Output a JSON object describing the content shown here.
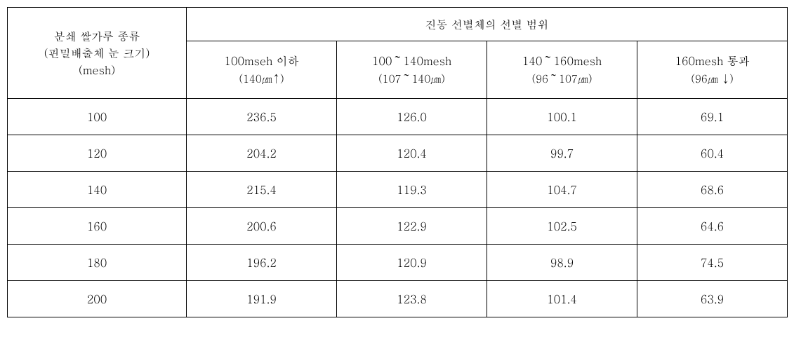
{
  "table": {
    "rowHeader": {
      "line1": "분쇄 쌀가루 종류",
      "line2": "(핀밀배출체 눈 크기)",
      "line3": "(mesh)"
    },
    "colGroupHeader": "진동 선별체의 선별 범위",
    "columnHeaders": [
      {
        "main": "100mseh 이하",
        "sub": "(140㎛↑)"
      },
      {
        "main": "100～140mesh",
        "sub": "(107～140㎛)"
      },
      {
        "main": "140～160mesh",
        "sub": "(96～107㎛)"
      },
      {
        "main": "160mesh 통과",
        "sub": "(96㎛ ↓)"
      }
    ],
    "rows": [
      {
        "mesh": "100",
        "values": [
          "236.5",
          "126.0",
          "100.1",
          "69.1"
        ]
      },
      {
        "mesh": "120",
        "values": [
          "204.2",
          "120.4",
          "99.7",
          "60.4"
        ]
      },
      {
        "mesh": "140",
        "values": [
          "215.4",
          "119.3",
          "104.7",
          "68.6"
        ]
      },
      {
        "mesh": "160",
        "values": [
          "200.6",
          "122.9",
          "102.5",
          "64.6"
        ]
      },
      {
        "mesh": "180",
        "values": [
          "196.2",
          "120.9",
          "98.9",
          "74.5"
        ]
      },
      {
        "mesh": "200",
        "values": [
          "191.9",
          "123.8",
          "101.4",
          "63.9"
        ]
      }
    ]
  }
}
